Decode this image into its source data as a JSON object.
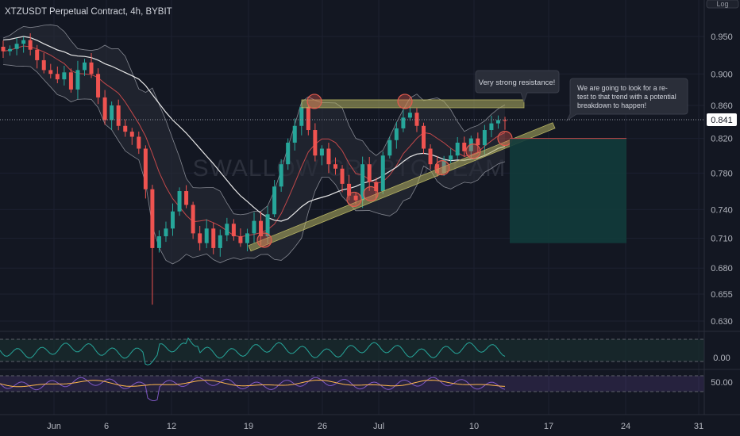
{
  "header": {
    "title": "XTZUSDT Perpetual Contract, 4h, BYBIT"
  },
  "watermark": "SWALLOW CRYPTO TEAM",
  "corner_label": "Log",
  "price_label": "0.841",
  "colors": {
    "background": "#131722",
    "up": "#26a69a",
    "down": "#ef5350",
    "band": "#b2b5be",
    "ma_white": "#e8e8e8",
    "ma_red": "#c2484a",
    "pattern": "#b5b262",
    "callout_bg": "#2a2e39",
    "position_fill": "#123b3b",
    "osc_green": "#26a69a",
    "rsi_purple": "#7e57c2",
    "rsi_orange": "#ffb74d"
  },
  "annotations": {
    "resistance": "Very strong resistance!",
    "retest_lines": [
      "We are going to look for a re-",
      "test to that trend with a potential",
      "breakdown to happen!"
    ]
  },
  "chart_data": [
    {
      "type": "line",
      "panel": "price",
      "title": "XTZUSDT Perpetual Contract, 4h, BYBIT",
      "y_scale": "log",
      "y_ticks": [
        0.95,
        0.9,
        0.86,
        0.82,
        0.78,
        0.74,
        0.71,
        0.68,
        0.655,
        0.63
      ],
      "y_tick_labels": [
        "0.950",
        "0.900",
        "0.860",
        "0.820",
        "0.780",
        "0.740",
        "0.710",
        "0.680",
        "0.655",
        "0.630"
      ],
      "x_tick_labels": [
        "Jun",
        "6",
        "12",
        "19",
        "26",
        "Jul",
        "10",
        "17",
        "24",
        "31"
      ],
      "series": [
        {
          "values": [
            [
              0.93,
              0.933,
              0.94,
              0.945,
              0.932,
              0.918,
              0.905
            ],
            [
              0.9,
              0.893,
              0.902,
              0.88,
              0.905,
              0.915,
              0.9
            ],
            [
              0.87,
              0.842,
              0.86,
              0.835,
              0.828,
              0.822,
              0.808
            ],
            [
              0.762,
              0.7,
              0.712,
              0.72,
              0.738,
              0.76,
              0.745
            ],
            [
              0.715,
              0.705,
              0.72,
              0.7,
              0.713,
              0.725,
              0.712
            ],
            [
              0.705,
              0.715,
              0.728,
              0.712,
              0.735,
              0.765,
              0.79
            ],
            [
              0.815,
              0.835,
              0.858,
              0.83,
              0.8,
              0.808,
              0.79
            ],
            [
              0.785,
              0.768,
              0.755,
              0.75,
              0.79,
              0.77,
              0.76
            ],
            [
              0.8,
              0.818,
              0.832,
              0.845,
              0.851,
              0.835,
              0.808
            ],
            [
              0.79,
              0.78,
              0.795,
              0.8,
              0.815,
              0.805,
              0.82
            ],
            [
              0.812,
              0.83,
              0.838,
              0.842,
              0.841
            ]
          ],
          "name": "",
          "flat_closes": [
            0.93,
            0.933,
            0.94,
            0.945,
            0.932,
            0.918,
            0.905,
            0.9,
            0.893,
            0.902,
            0.88,
            0.905,
            0.915,
            0.9,
            0.87,
            0.842,
            0.86,
            0.835,
            0.828,
            0.822,
            0.808,
            0.762,
            0.7,
            0.712,
            0.72,
            0.738,
            0.76,
            0.745,
            0.715,
            0.705,
            0.72,
            0.7,
            0.713,
            0.725,
            0.712,
            0.705,
            0.715,
            0.728,
            0.712,
            0.735,
            0.765,
            0.79,
            0.815,
            0.835,
            0.858,
            0.83,
            0.8,
            0.808,
            0.79,
            0.785,
            0.768,
            0.755,
            0.75,
            0.79,
            0.77,
            0.76,
            0.8,
            0.818,
            0.832,
            0.845,
            0.851,
            0.835,
            0.808,
            0.79,
            0.78,
            0.795,
            0.8,
            0.815,
            0.805,
            0.82,
            0.812,
            0.83,
            0.838,
            0.842,
            0.841
          ]
        }
      ],
      "resistance_level": 0.862,
      "rising_trendline": {
        "from": [
          "Jun 20",
          0.705
        ],
        "to": [
          "Jul 15",
          0.836
        ]
      },
      "position": {
        "entry": 0.82,
        "target": 0.705
      }
    },
    {
      "type": "line",
      "panel": "oscillator",
      "y_tick_labels": [
        "0.00"
      ]
    },
    {
      "type": "line",
      "panel": "rsi",
      "y_tick_labels": [
        "50.00"
      ]
    }
  ]
}
